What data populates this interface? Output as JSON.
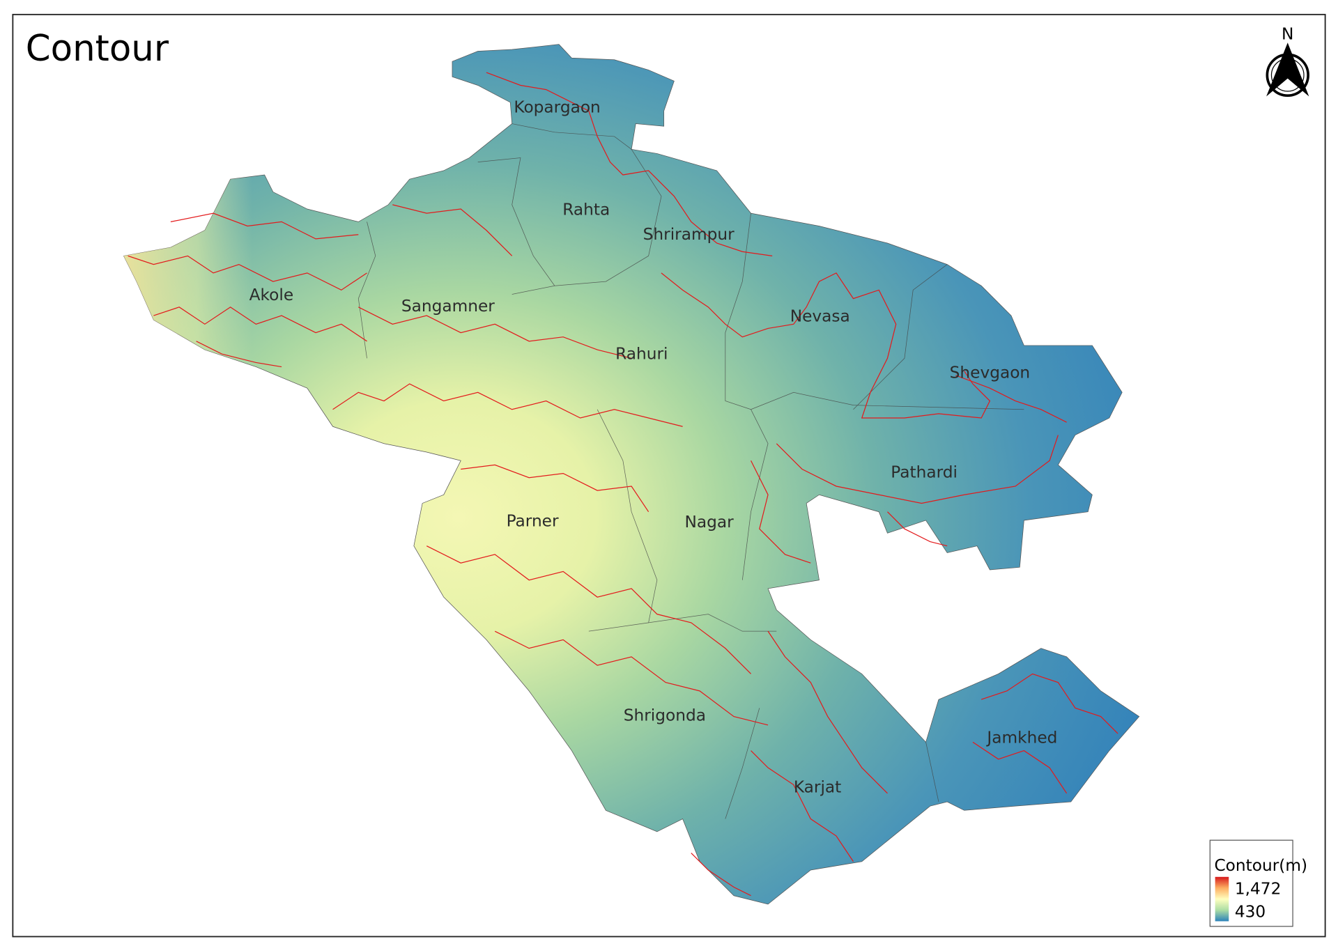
{
  "title": "Contour",
  "north_arrow": {
    "label": "N",
    "icon": "north-arrow-icon"
  },
  "legend": {
    "title": "Contour(m)",
    "max_label": "1,472",
    "min_label": "430",
    "ramp_colors": [
      "#d7191c",
      "#fdae61",
      "#ffffbf",
      "#abdda4",
      "#2b83ba"
    ]
  },
  "contour_color": "#e31a1c",
  "districts": [
    {
      "name": "Kopargaon"
    },
    {
      "name": "Rahta"
    },
    {
      "name": "Shrirampur"
    },
    {
      "name": "Akole"
    },
    {
      "name": "Sangamner"
    },
    {
      "name": "Nevasa"
    },
    {
      "name": "Rahuri"
    },
    {
      "name": "Shevgaon"
    },
    {
      "name": "Pathardi"
    },
    {
      "name": "Parner"
    },
    {
      "name": "Nagar"
    },
    {
      "name": "Shrigonda"
    },
    {
      "name": "Jamkhed"
    },
    {
      "name": "Karjat"
    }
  ]
}
